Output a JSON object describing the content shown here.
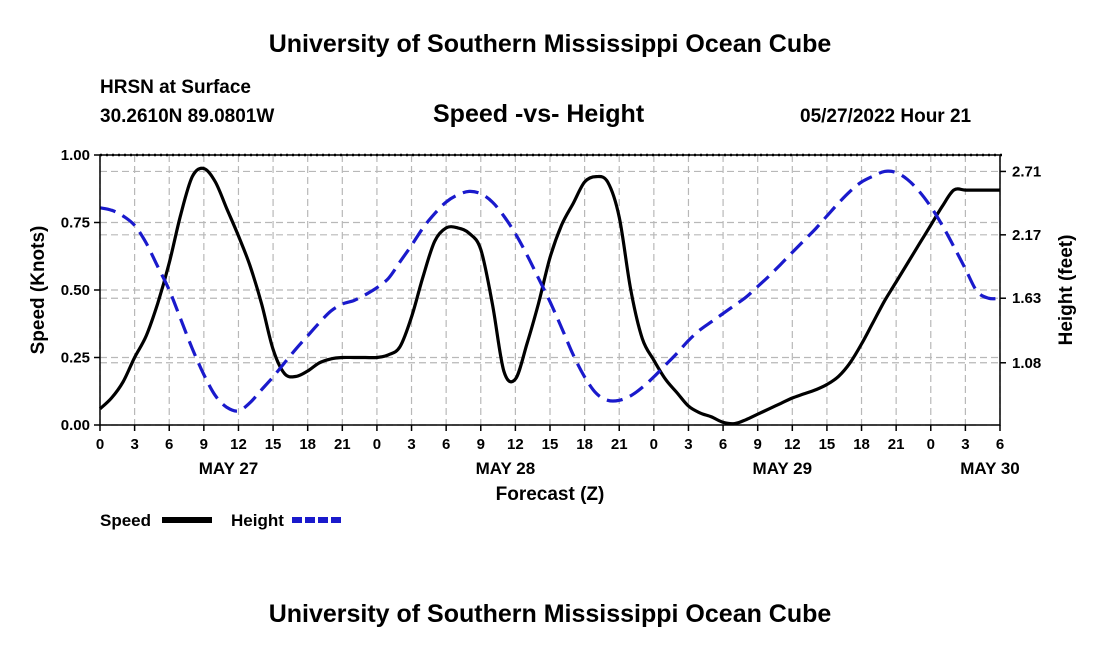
{
  "header": {
    "title": "University of Southern Mississippi Ocean Cube",
    "station": "HRSN at Surface",
    "coords": "30.2610N  89.0801W",
    "subtitle": "Speed -vs- Height",
    "datetime": "05/27/2022 Hour 21"
  },
  "footer": {
    "title": "University of Southern Mississippi Ocean Cube"
  },
  "chart_data": {
    "type": "line",
    "title": "Speed -vs- Height",
    "xlabel": "Forecast (Z)",
    "ylabel": "Speed (Knots)",
    "y2label": "Height (feet)",
    "xlim": [
      0,
      78
    ],
    "ylim": [
      0,
      1
    ],
    "y2lim": [
      0.55,
      2.85
    ],
    "x_ticks": [
      0,
      3,
      6,
      9,
      12,
      15,
      18,
      21,
      24,
      27,
      30,
      33,
      36,
      39,
      42,
      45,
      48,
      51,
      54,
      57,
      60,
      63,
      66,
      69,
      72,
      75,
      78
    ],
    "x_tick_labels": [
      "0",
      "3",
      "6",
      "9",
      "12",
      "15",
      "18",
      "21",
      "0",
      "3",
      "6",
      "9",
      "12",
      "15",
      "18",
      "21",
      "0",
      "3",
      "6",
      "9",
      "12",
      "15",
      "18",
      "21",
      "0",
      "3",
      "6"
    ],
    "y_ticks": [
      0,
      0.25,
      0.5,
      0.75,
      1.0
    ],
    "y_tick_labels": [
      "0.00",
      "0.25",
      "0.50",
      "0.75",
      "1.00"
    ],
    "y2_ticks": [
      1.08,
      1.63,
      2.17,
      2.71
    ],
    "y2_tick_labels": [
      "1.08",
      "1.63",
      "2.17",
      "2.71"
    ],
    "date_labels": [
      {
        "x": 12,
        "label": "MAY 27"
      },
      {
        "x": 36,
        "label": "MAY 28"
      },
      {
        "x": 60,
        "label": "MAY 29"
      },
      {
        "x": 78,
        "label": "MAY 30"
      }
    ],
    "grid": true,
    "series": [
      {
        "name": "Speed",
        "axis": "left",
        "color": "#000000",
        "dash": "solid",
        "x": [
          0,
          1,
          2,
          3,
          4,
          5,
          6,
          7,
          8,
          9,
          10,
          11,
          12,
          13,
          14,
          15,
          16,
          17,
          18,
          19,
          20,
          21,
          22,
          23,
          24,
          25,
          26,
          27,
          28,
          29,
          30,
          31,
          32,
          33,
          34,
          35,
          36,
          37,
          38,
          39,
          40,
          41,
          42,
          43,
          44,
          45,
          46,
          47,
          48,
          49,
          50,
          51,
          52,
          53,
          54,
          55,
          56,
          57,
          58,
          59,
          60,
          61,
          62,
          63,
          64,
          65,
          66,
          67,
          68,
          69,
          70,
          71,
          72,
          73,
          74,
          75,
          76,
          77,
          78
        ],
        "values": [
          0.06,
          0.1,
          0.16,
          0.25,
          0.33,
          0.45,
          0.6,
          0.78,
          0.92,
          0.95,
          0.9,
          0.8,
          0.7,
          0.59,
          0.45,
          0.28,
          0.19,
          0.18,
          0.2,
          0.23,
          0.245,
          0.25,
          0.25,
          0.25,
          0.25,
          0.26,
          0.29,
          0.4,
          0.55,
          0.68,
          0.73,
          0.73,
          0.71,
          0.65,
          0.45,
          0.2,
          0.17,
          0.3,
          0.45,
          0.62,
          0.74,
          0.82,
          0.9,
          0.92,
          0.9,
          0.77,
          0.5,
          0.32,
          0.24,
          0.17,
          0.12,
          0.07,
          0.045,
          0.03,
          0.01,
          0.005,
          0.02,
          0.04,
          0.06,
          0.08,
          0.1,
          0.115,
          0.13,
          0.15,
          0.18,
          0.23,
          0.3,
          0.38,
          0.46,
          0.53,
          0.6,
          0.67,
          0.74,
          0.81,
          0.87,
          0.87,
          0.87,
          0.87,
          0.87
        ]
      },
      {
        "name": "Height",
        "axis": "right",
        "color": "#1a1acc",
        "dash": "dashed",
        "x": [
          0,
          1,
          2,
          3,
          4,
          5,
          6,
          7,
          8,
          9,
          10,
          11,
          12,
          13,
          14,
          15,
          16,
          17,
          18,
          19,
          20,
          21,
          22,
          23,
          24,
          25,
          26,
          27,
          28,
          29,
          30,
          31,
          32,
          33,
          34,
          35,
          36,
          37,
          38,
          39,
          40,
          41,
          42,
          43,
          44,
          45,
          46,
          47,
          48,
          49,
          50,
          51,
          52,
          53,
          54,
          55,
          56,
          57,
          58,
          59,
          60,
          61,
          62,
          63,
          64,
          65,
          66,
          67,
          68,
          69,
          70,
          71,
          72,
          73,
          74,
          75,
          76,
          77,
          78
        ],
        "values": [
          2.4,
          2.38,
          2.33,
          2.25,
          2.1,
          1.9,
          1.7,
          1.45,
          1.2,
          0.98,
          0.8,
          0.7,
          0.67,
          0.74,
          0.85,
          0.96,
          1.08,
          1.2,
          1.31,
          1.42,
          1.52,
          1.58,
          1.61,
          1.66,
          1.72,
          1.8,
          1.94,
          2.08,
          2.23,
          2.35,
          2.45,
          2.51,
          2.54,
          2.52,
          2.45,
          2.33,
          2.18,
          2.0,
          1.8,
          1.6,
          1.38,
          1.15,
          0.96,
          0.82,
          0.76,
          0.76,
          0.8,
          0.87,
          0.96,
          1.06,
          1.16,
          1.27,
          1.36,
          1.43,
          1.5,
          1.57,
          1.64,
          1.73,
          1.82,
          1.92,
          2.02,
          2.12,
          2.22,
          2.33,
          2.44,
          2.54,
          2.62,
          2.67,
          2.71,
          2.7,
          2.64,
          2.54,
          2.41,
          2.25,
          2.07,
          1.88,
          1.69,
          1.63,
          1.63
        ]
      }
    ],
    "legend": {
      "placement": "bottom-left",
      "entries": [
        "Speed",
        "Height"
      ]
    }
  }
}
